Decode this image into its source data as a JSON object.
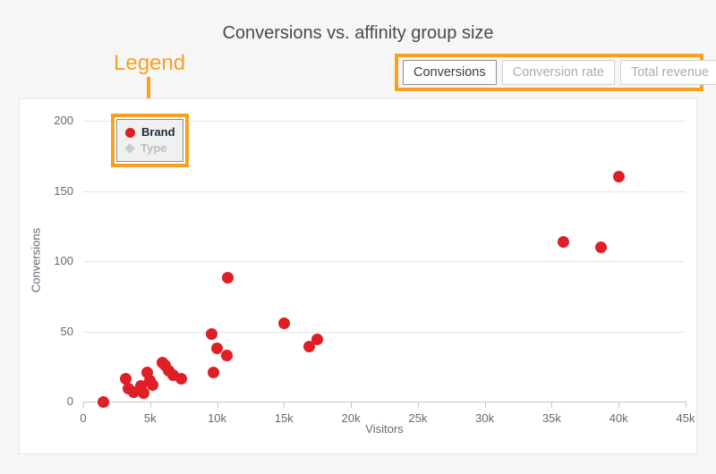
{
  "title": "Conversions vs. affinity group size",
  "metric_buttons": {
    "items": [
      {
        "label": "Conversions",
        "active": true
      },
      {
        "label": "Conversion rate",
        "active": false
      },
      {
        "label": "Total revenue",
        "active": false
      }
    ]
  },
  "annotation": {
    "label": "Legend",
    "color": "#f7a11f"
  },
  "legend": {
    "items": [
      {
        "label": "Brand",
        "marker": "circle",
        "color": "#e01e26",
        "text_color": "#1f2a36",
        "enabled": true
      },
      {
        "label": "Type",
        "marker": "diamond",
        "color": "#cbcbcb",
        "text_color": "#bdbdbd",
        "enabled": false
      }
    ]
  },
  "chart_data": {
    "type": "scatter",
    "title": "Conversions vs. affinity group size",
    "xlabel": "Visitors",
    "ylabel": "Conversions",
    "xlim": [
      0,
      45000
    ],
    "ylim": [
      0,
      200
    ],
    "grid": "horizontal",
    "legend_position": "top-left",
    "point_color": "#e01e26",
    "x_ticks": [
      {
        "v": 0,
        "label": "0"
      },
      {
        "v": 5000,
        "label": "5k"
      },
      {
        "v": 10000,
        "label": "10k"
      },
      {
        "v": 15000,
        "label": "15k"
      },
      {
        "v": 20000,
        "label": "20k"
      },
      {
        "v": 25000,
        "label": "25k"
      },
      {
        "v": 30000,
        "label": "30k"
      },
      {
        "v": 35000,
        "label": "35k"
      },
      {
        "v": 40000,
        "label": "40k"
      },
      {
        "v": 45000,
        "label": "45k"
      }
    ],
    "y_ticks": [
      {
        "v": 0,
        "label": "0"
      },
      {
        "v": 50,
        "label": "50"
      },
      {
        "v": 100,
        "label": "100"
      },
      {
        "v": 150,
        "label": "150"
      },
      {
        "v": 200,
        "label": "200"
      }
    ],
    "series": [
      {
        "name": "Brand",
        "marker": "circle",
        "color": "#e01e26",
        "visible": true,
        "points": [
          [
            1500,
            0
          ],
          [
            3200,
            16
          ],
          [
            3400,
            9
          ],
          [
            3800,
            7
          ],
          [
            4300,
            11
          ],
          [
            4500,
            6
          ],
          [
            4800,
            21
          ],
          [
            5000,
            15
          ],
          [
            5200,
            12
          ],
          [
            5900,
            28
          ],
          [
            6100,
            26
          ],
          [
            6400,
            22
          ],
          [
            6700,
            19
          ],
          [
            7300,
            16
          ],
          [
            9600,
            48
          ],
          [
            9700,
            21
          ],
          [
            10000,
            38
          ],
          [
            10700,
            33
          ],
          [
            10800,
            88
          ],
          [
            15000,
            56
          ],
          [
            16900,
            39
          ],
          [
            17500,
            44
          ],
          [
            35900,
            114
          ],
          [
            38700,
            110
          ],
          [
            40000,
            160
          ]
        ]
      },
      {
        "name": "Type",
        "marker": "diamond",
        "color": "#cbcbcb",
        "visible": false,
        "points": []
      }
    ]
  }
}
